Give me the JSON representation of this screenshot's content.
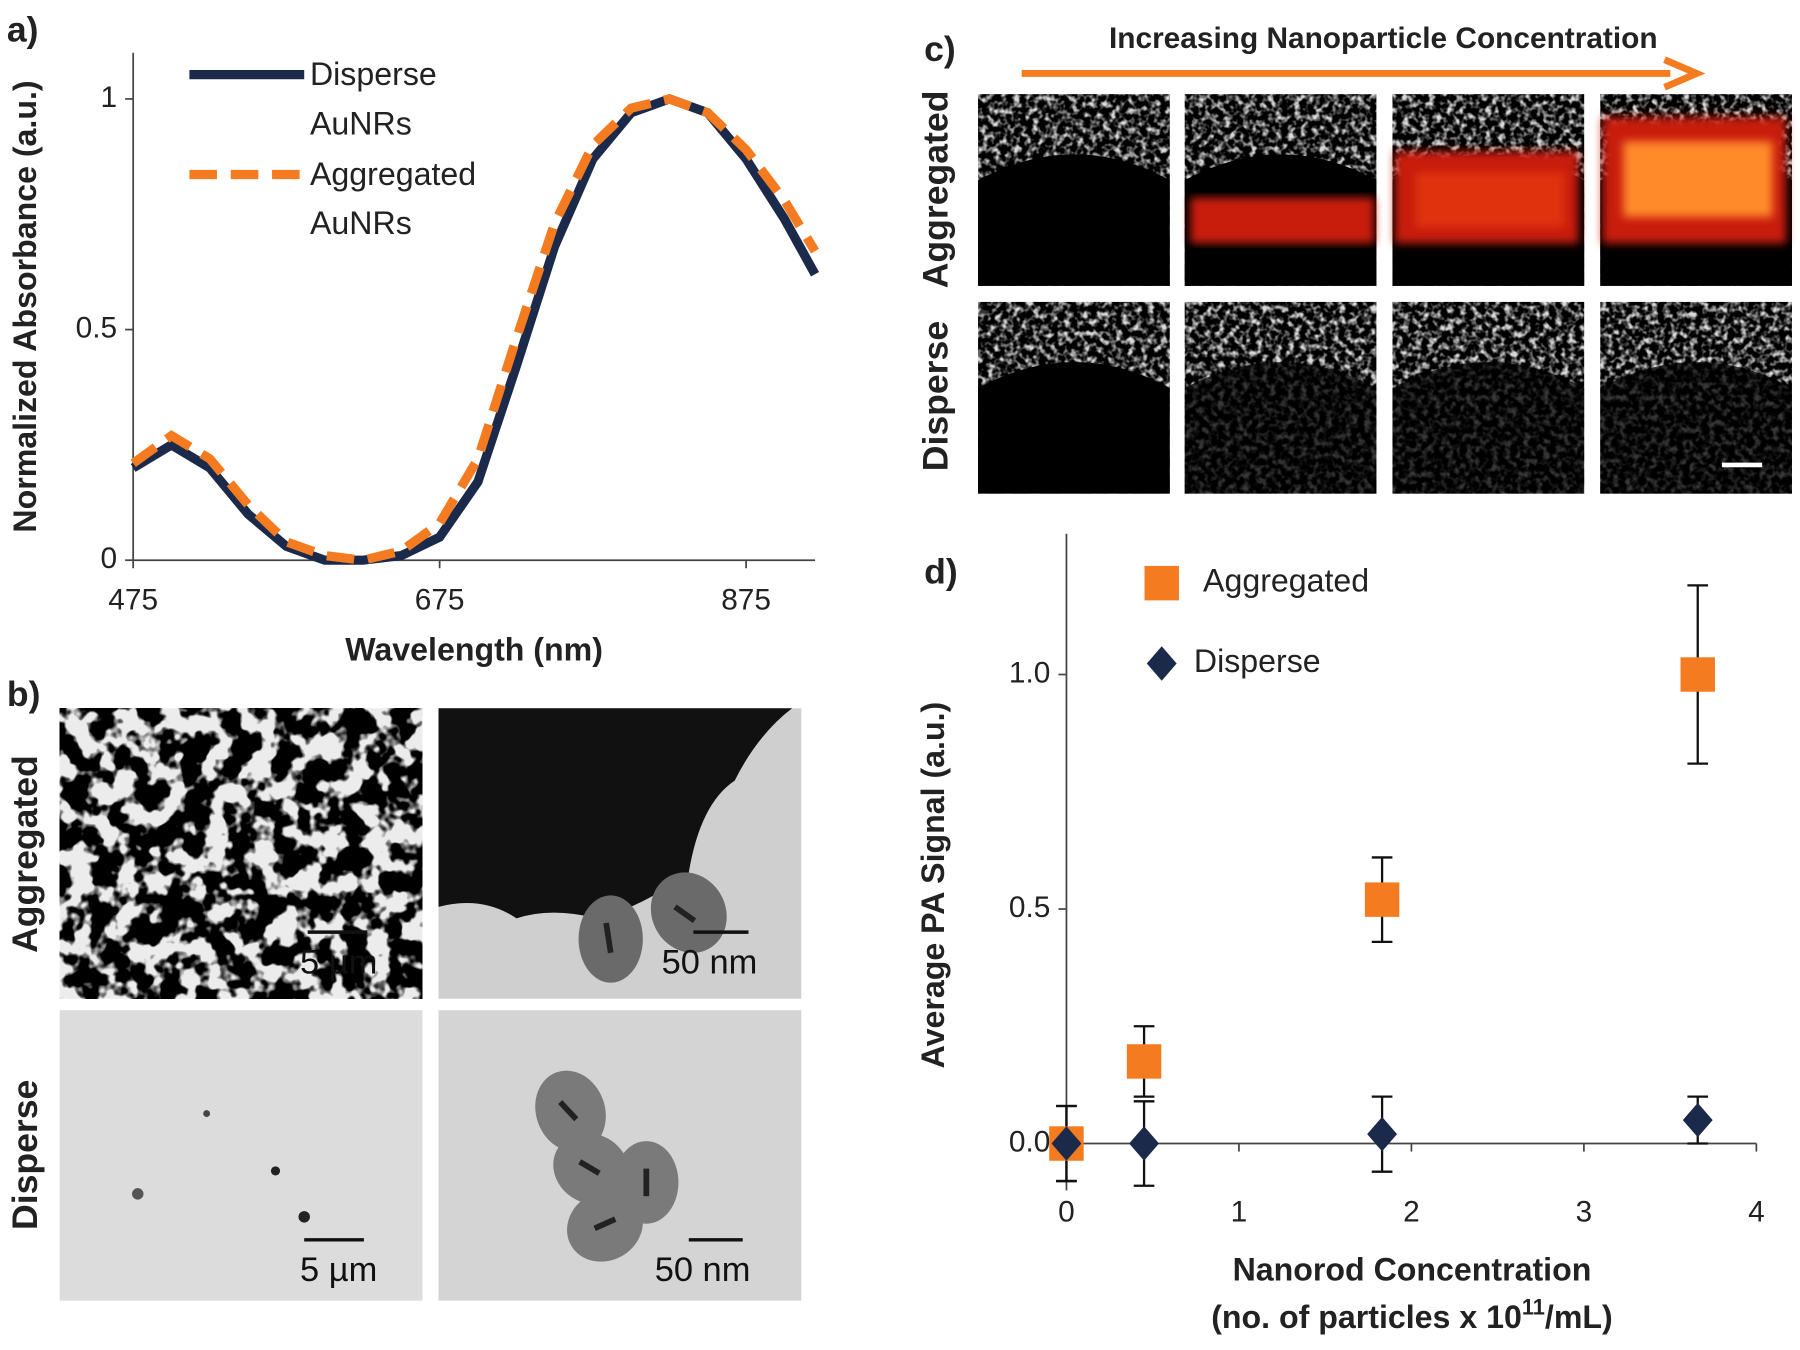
{
  "chart_data": [
    {
      "type": "line",
      "panel_label": "a)",
      "xlabel": "Wavelength (nm)",
      "ylabel": "Normalized Absorbance (a.u.)",
      "x": [
        475,
        500,
        525,
        550,
        575,
        600,
        625,
        650,
        675,
        700,
        725,
        750,
        775,
        800,
        825,
        850,
        875,
        900,
        920
      ],
      "xlim": [
        475,
        920
      ],
      "xticks": [
        475,
        675,
        875
      ],
      "ylim": [
        0,
        1.1
      ],
      "yticks": [
        0,
        0.5,
        1
      ],
      "legend": "upper left",
      "series": [
        {
          "name": "Disperse AuNRs",
          "color": "#1b2a4a",
          "style": "solid",
          "values": [
            0.2,
            0.25,
            0.2,
            0.1,
            0.03,
            0,
            0,
            0.01,
            0.05,
            0.17,
            0.42,
            0.68,
            0.87,
            0.97,
            1.0,
            0.97,
            0.87,
            0.74,
            0.62
          ]
        },
        {
          "name": "Aggregated AuNRs",
          "color": "#f47b20",
          "style": "dashed",
          "values": [
            0.21,
            0.27,
            0.22,
            0.12,
            0.04,
            0.01,
            0,
            0.02,
            0.08,
            0.22,
            0.48,
            0.73,
            0.9,
            0.98,
            1.0,
            0.97,
            0.89,
            0.78,
            0.67
          ]
        }
      ]
    },
    {
      "type": "scatter",
      "panel_label": "d)",
      "ylabel": "Average PA Signal (a.u.)",
      "xlabel": "Nanorod Concentration",
      "xlabel2": [
        "(no. of particles x 10",
        "11",
        "/mL)"
      ],
      "x": [
        0,
        0.45,
        1.83,
        3.66
      ],
      "xlim": [
        0,
        4
      ],
      "xticks": [
        0,
        1,
        2,
        3,
        4
      ],
      "ylim": [
        -0.1,
        1.3
      ],
      "yticks": [
        {
          "value": 0,
          "label": "0.0"
        },
        {
          "value": 0.5,
          "label": "0.5"
        },
        {
          "value": 1,
          "label": "1.0"
        }
      ],
      "legend": "upper left",
      "series": [
        {
          "name": "Aggregated",
          "color": "#f47b20",
          "marker": "square",
          "values": [
            0,
            0.175,
            0.52,
            1.0
          ],
          "errors": [
            0.08,
            0.075,
            0.09,
            0.19
          ]
        },
        {
          "name": "Disperse",
          "color": "#1b2a4a",
          "marker": "diamond",
          "values": [
            0,
            0,
            0.02,
            0.05
          ],
          "errors": [
            0.08,
            0.09,
            0.08,
            0.05
          ]
        }
      ]
    }
  ],
  "images": {
    "b": {
      "panel_label": "b)",
      "rows": [
        "Aggregated",
        "Disperse"
      ],
      "scale_bars": [
        [
          "5 µm",
          "50 nm"
        ],
        [
          "5 µm",
          "50 nm"
        ]
      ]
    },
    "c": {
      "panel_label": "c)",
      "title": "Increasing Nanoparticle Concentration",
      "rows": [
        "Aggregated",
        "Disperse"
      ]
    }
  }
}
